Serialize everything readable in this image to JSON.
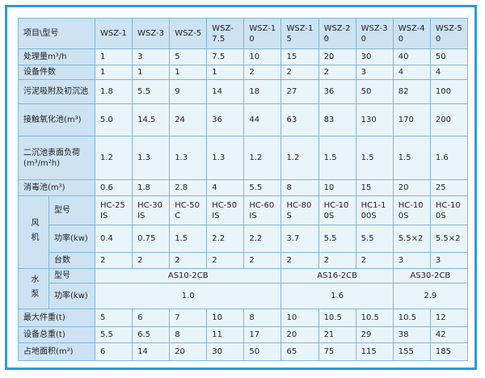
{
  "header": {
    "corner": "项目\\型号",
    "models": [
      "WSZ-1",
      "WSZ-3",
      "WSZ-5",
      "WSZ-7.5",
      "WSZ-10",
      "WSZ-15",
      "WSZ-20",
      "WSZ-30",
      "WSZ-40",
      "WSZ-50"
    ]
  },
  "sections": [
    {
      "label": "处理量m³/h",
      "values": [
        "1",
        "3",
        "5",
        "7.5",
        "10",
        "15",
        "20",
        "30",
        "40",
        "50"
      ]
    },
    {
      "label": "设备件数",
      "values": [
        "1",
        "1",
        "1",
        "1",
        "2",
        "2",
        "2",
        "3",
        "4",
        "4"
      ]
    },
    {
      "label": "污泥吸附及初沉池",
      "values": [
        "1.8",
        "5.5",
        "9",
        "14",
        "18",
        "27",
        "36",
        "50",
        "82",
        "100"
      ]
    },
    {
      "label": "接触氧化池(m³)",
      "values": [
        "5.0",
        "14.5",
        "24",
        "36",
        "44",
        "63",
        "83",
        "130",
        "170",
        "200"
      ]
    },
    {
      "label": "二沉池表面负荷(m³/m²h)",
      "values": [
        "1.2",
        "1.3",
        "1.3",
        "1.3",
        "1.2",
        "1.2",
        "1.5",
        "1.5",
        "1.5",
        "1.6"
      ]
    },
    {
      "label": "消毒池(m³)",
      "values": [
        "0.6",
        "1.8",
        "2.8",
        "4",
        "5.5",
        "8",
        "10",
        "15",
        "20",
        "25"
      ]
    },
    {
      "group": "风机",
      "rows": [
        {
          "label": "型号",
          "values": [
            "HC-25IS",
            "HC-30IS",
            "HC-50C",
            "HC-50IS",
            "HC-60IS",
            "HC-80S",
            "HC-100S",
            "HC1-100S",
            "HC-100S",
            "HC-100S"
          ]
        },
        {
          "label": "功率(kw)",
          "values": [
            "0.4",
            "0.75",
            "1.5",
            "2.2",
            "2.2",
            "3.7",
            "5.5",
            "5.5",
            "5.5×2",
            "5.5×2"
          ]
        },
        {
          "label": "台数",
          "values": [
            "2",
            "2",
            "2",
            "2",
            "2",
            "2",
            "2",
            "2",
            "3",
            "3"
          ]
        }
      ]
    },
    {
      "group": "水泵",
      "rows": [
        {
          "label": "型号",
          "spans": [
            {
              "text": "AS10-2CB",
              "span": 5
            },
            {
              "text": "AS16-2CB",
              "span": 3
            },
            {
              "text": "AS30-2CB",
              "span": 2
            }
          ]
        },
        {
          "label": "功率(kw)",
          "spans": [
            {
              "text": "1.0",
              "span": 5
            },
            {
              "text": "1.6",
              "span": 3
            },
            {
              "text": "2.9",
              "span": 2
            }
          ]
        }
      ]
    },
    {
      "label": "最大件重(t)",
      "values": [
        "5",
        "6",
        "7",
        "10",
        "8",
        "10",
        "10.5",
        "10.5",
        "10.5",
        "12"
      ]
    },
    {
      "label": "设备总重(t)",
      "values": [
        "5.5",
        "6.5",
        "8",
        "11",
        "17",
        "20",
        "21",
        "29",
        "38",
        "42"
      ]
    },
    {
      "label": "占地面积(m²)",
      "values": [
        "6",
        "14",
        "20",
        "30",
        "50",
        "65",
        "75",
        "115",
        "155",
        "185"
      ]
    }
  ]
}
